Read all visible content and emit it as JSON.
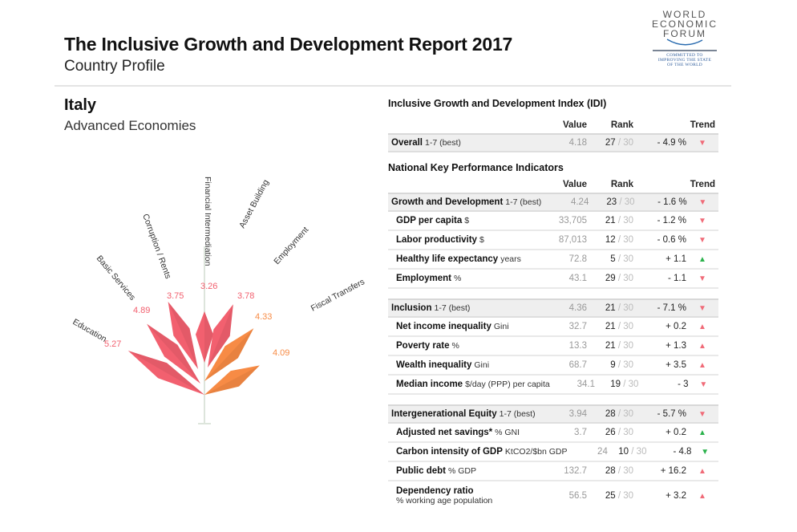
{
  "header": {
    "title": "The Inclusive Growth and Development Report 2017",
    "subtitle": "Country Profile"
  },
  "logo": {
    "line1": "WORLD",
    "line2": "ECONOMIC",
    "line3": "FORUM",
    "tag1": "COMMITTED TO",
    "tag2": "IMPROVING THE STATE",
    "tag3": "OF THE WORLD"
  },
  "country": {
    "name": "Italy",
    "group": "Advanced Economies"
  },
  "colors": {
    "pink": "#f2606f",
    "orange": "#f78b45",
    "stem": "#dde5dc",
    "arrow_red": "#f06b78",
    "arrow_green": "#2bb24c"
  },
  "chart_data": {
    "type": "radial-bar",
    "title": "Italy pillar scores",
    "categories": [
      "Education",
      "Basic Services",
      "Corruption / Rents",
      "Financial Intermediation",
      "Asset Building",
      "Employment",
      "Fiscal Transfers"
    ],
    "values": [
      5.27,
      4.89,
      3.75,
      3.26,
      3.78,
      4.33,
      4.09
    ],
    "colors": [
      "#f2606f",
      "#f2606f",
      "#f2606f",
      "#f2606f",
      "#f2606f",
      "#f78b45",
      "#f78b45"
    ],
    "scale": "1-7"
  },
  "idi": {
    "title": "Inclusive Growth and Development Index (IDI)",
    "headers": {
      "value": "Value",
      "rank": "Rank",
      "trend": "Trend"
    },
    "overall": {
      "label": "Overall",
      "unit": "1-7 (best)",
      "value": "4.18",
      "rank": "27",
      "of": "/ 30",
      "trend": "- 4.9 %",
      "arrow": "▼"
    }
  },
  "kpi": {
    "title": "National Key Performance Indicators",
    "headers": {
      "value": "Value",
      "rank": "Rank",
      "trend": "Trend"
    },
    "groups": [
      {
        "label": "Growth and Development",
        "unit": "1-7 (best)",
        "value": "4.24",
        "rank": "23",
        "of": "/ 30",
        "trend": "- 1.6 %",
        "arrow": "▼",
        "rows": [
          {
            "label": "GDP per capita",
            "unit": "$",
            "value": "33,705",
            "rank": "21",
            "of": "/ 30",
            "trend": "- 1.2 %",
            "arrow": "▼"
          },
          {
            "label": "Labor productivity",
            "unit": "$",
            "value": "87,013",
            "rank": "12",
            "of": "/ 30",
            "trend": "- 0.6 %",
            "arrow": "▼"
          },
          {
            "label": "Healthy life expectancy",
            "unit": "years",
            "value": "72.8",
            "rank": "5",
            "of": "/ 30",
            "trend": "+ 1.1",
            "arrow": "▲"
          },
          {
            "label": "Employment",
            "unit": "%",
            "value": "43.1",
            "rank": "29",
            "of": "/ 30",
            "trend": "- 1.1",
            "arrow": "▼"
          }
        ]
      },
      {
        "label": "Inclusion",
        "unit": "1-7 (best)",
        "value": "4.36",
        "rank": "21",
        "of": "/ 30",
        "trend": "- 7.1 %",
        "arrow": "▼",
        "rows": [
          {
            "label": "Net income inequality",
            "unit": "Gini",
            "value": "32.7",
            "rank": "21",
            "of": "/ 30",
            "trend": "+ 0.2",
            "arrow": "▲"
          },
          {
            "label": "Poverty rate",
            "unit": "%",
            "value": "13.3",
            "rank": "21",
            "of": "/ 30",
            "trend": "+ 1.3",
            "arrow": "▲"
          },
          {
            "label": "Wealth inequality",
            "unit": "Gini",
            "value": "68.7",
            "rank": "9",
            "of": "/ 30",
            "trend": "+ 3.5",
            "arrow": "▲"
          },
          {
            "label": "Median income",
            "unit": "$/day (PPP) per capita",
            "value": "34.1",
            "rank": "19",
            "of": "/ 30",
            "trend": "- 3",
            "arrow": "▼"
          }
        ]
      },
      {
        "label": "Intergenerational Equity",
        "unit": "1-7 (best)",
        "value": "3.94",
        "rank": "28",
        "of": "/ 30",
        "trend": "- 5.7 %",
        "arrow": "▼",
        "rows": [
          {
            "label": "Adjusted net savings*",
            "unit": "% GNI",
            "value": "3.7",
            "rank": "26",
            "of": "/ 30",
            "trend": "+ 0.2",
            "arrow": "▲"
          },
          {
            "label": "Carbon intensity of GDP",
            "unit": "KtCO2/$bn GDP",
            "value": "24",
            "rank": "10",
            "of": "/ 30",
            "trend": "- 4.8",
            "arrow": "▼"
          },
          {
            "label": "Public debt",
            "unit": "% GDP",
            "value": "132.7",
            "rank": "28",
            "of": "/ 30",
            "trend": "+ 16.2",
            "arrow": "▲"
          },
          {
            "label": "Dependency ratio",
            "unit": "% working age population",
            "value": "56.5",
            "rank": "25",
            "of": "/ 30",
            "trend": "+ 3.2",
            "arrow": "▲"
          }
        ]
      }
    ]
  }
}
